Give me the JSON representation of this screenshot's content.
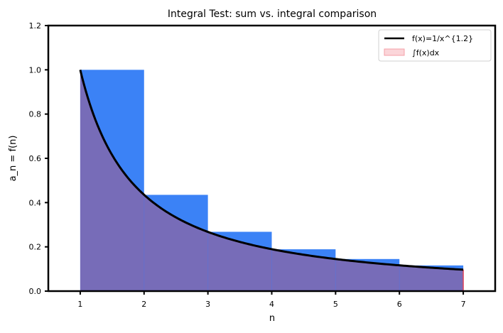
{
  "chart_data": {
    "type": "bar",
    "title": "Integral Test: sum vs. integral comparison",
    "xlabel": "n",
    "ylabel": "a_n = f(n)",
    "xlim": [
      0.5,
      7.5
    ],
    "ylim": [
      0,
      1.2
    ],
    "xticks": [
      "1",
      "2",
      "3",
      "4",
      "5",
      "6",
      "7"
    ],
    "yticks": [
      "0.0",
      "0.2",
      "0.4",
      "0.6",
      "0.8",
      "1.0",
      "1.2"
    ],
    "grid": false,
    "legend_position": "upper right",
    "bars": {
      "name": "a_n",
      "left_edges": [
        1,
        2,
        3,
        4,
        5,
        6
      ],
      "width": 1,
      "values": [
        1.0,
        0.435,
        0.268,
        0.189,
        0.145,
        0.116
      ],
      "color": "#3b82f6"
    },
    "series": [
      {
        "name": "f(x)=1/x^{1.2}",
        "type": "line",
        "color": "#000000",
        "x_range": [
          1,
          7
        ],
        "exponent": 1.2
      },
      {
        "name": "∫f(x)dx",
        "type": "area",
        "color": "#f4a0a8",
        "alpha": 0.35,
        "x_range": [
          1,
          7
        ]
      }
    ],
    "overlap_color": "#776cb8"
  },
  "legend": {
    "items": [
      {
        "label": "f(x)=1/x^{1.2}"
      },
      {
        "label": "∫f(x)dx"
      }
    ]
  }
}
